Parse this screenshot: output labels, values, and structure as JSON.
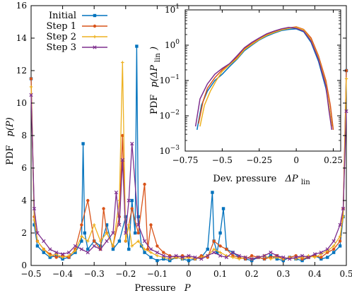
{
  "chart_data": [
    {
      "type": "line",
      "panel": "main",
      "xlabel": "Pressure",
      "xlabel_symbol": "P",
      "ylabel": "PDF",
      "ylabel_symbol": "p(P)",
      "xlim": [
        -0.5,
        0.5
      ],
      "ylim": [
        0,
        16
      ],
      "xticks": [
        "−0.5",
        "−0.4",
        "−0.3",
        "−0.2",
        "−0.1",
        "0",
        "0.1",
        "0.2",
        "0.3",
        "0.4",
        "0.5"
      ],
      "yticks": [
        "0",
        "2",
        "4",
        "6",
        "8",
        "10",
        "12",
        "14",
        "16"
      ],
      "legend_position": "top-left",
      "series": [
        {
          "name": "Initial",
          "color": "#0072bd",
          "marker": "square",
          "x": [
            -0.5,
            -0.49,
            -0.48,
            -0.46,
            -0.44,
            -0.42,
            -0.4,
            -0.38,
            -0.36,
            -0.34,
            -0.335,
            -0.33,
            -0.32,
            -0.3,
            -0.28,
            -0.26,
            -0.24,
            -0.22,
            -0.2,
            -0.19,
            -0.18,
            -0.17,
            -0.165,
            -0.16,
            -0.15,
            -0.14,
            -0.12,
            -0.1,
            -0.08,
            -0.06,
            -0.04,
            -0.02,
            0.0,
            0.02,
            0.04,
            0.06,
            0.075,
            0.08,
            0.09,
            0.1,
            0.11,
            0.12,
            0.14,
            0.16,
            0.18,
            0.2,
            0.22,
            0.24,
            0.26,
            0.28,
            0.3,
            0.32,
            0.34,
            0.36,
            0.38,
            0.4,
            0.42,
            0.44,
            0.46,
            0.48,
            0.49,
            0.5
          ],
          "y": [
            11.5,
            2.5,
            1.2,
            0.8,
            0.5,
            0.6,
            0.4,
            0.5,
            0.8,
            1.5,
            7.5,
            2.0,
            1.0,
            1.5,
            1.2,
            2.5,
            1.0,
            1.5,
            3.0,
            1.0,
            4.0,
            2.0,
            13.5,
            3.0,
            1.2,
            0.8,
            0.5,
            0.3,
            0.4,
            0.3,
            0.5,
            0.4,
            0.3,
            0.4,
            0.5,
            1.0,
            4.5,
            1.5,
            0.8,
            2.0,
            3.5,
            1.0,
            0.8,
            0.5,
            0.4,
            0.3,
            0.5,
            0.4,
            0.6,
            0.4,
            0.3,
            0.5,
            0.4,
            0.3,
            0.5,
            0.6,
            0.4,
            0.5,
            0.8,
            1.2,
            3.0,
            12.0
          ]
        },
        {
          "name": "Step 1",
          "color": "#d95319",
          "marker": "circle",
          "x": [
            -0.5,
            -0.49,
            -0.48,
            -0.46,
            -0.44,
            -0.42,
            -0.4,
            -0.38,
            -0.36,
            -0.34,
            -0.32,
            -0.3,
            -0.28,
            -0.27,
            -0.26,
            -0.24,
            -0.22,
            -0.21,
            -0.2,
            -0.18,
            -0.16,
            -0.14,
            -0.13,
            -0.12,
            -0.1,
            -0.08,
            -0.06,
            -0.04,
            -0.02,
            0.0,
            0.02,
            0.04,
            0.06,
            0.08,
            0.1,
            0.12,
            0.14,
            0.16,
            0.18,
            0.2,
            0.22,
            0.24,
            0.26,
            0.28,
            0.3,
            0.32,
            0.34,
            0.36,
            0.38,
            0.4,
            0.42,
            0.44,
            0.46,
            0.48,
            0.49,
            0.5
          ],
          "y": [
            11.5,
            3.0,
            1.5,
            1.0,
            0.7,
            0.5,
            0.6,
            0.5,
            1.0,
            2.5,
            4.0,
            1.5,
            1.0,
            3.5,
            2.0,
            1.2,
            3.0,
            8.0,
            1.5,
            3.5,
            2.0,
            5.0,
            1.0,
            2.5,
            1.2,
            0.8,
            0.6,
            0.5,
            0.6,
            0.5,
            0.4,
            0.6,
            0.5,
            1.5,
            1.2,
            1.0,
            0.6,
            0.5,
            0.4,
            0.6,
            0.5,
            0.4,
            0.5,
            0.6,
            0.4,
            0.5,
            0.6,
            0.4,
            0.5,
            0.6,
            0.5,
            0.8,
            1.0,
            1.5,
            3.5,
            12.0
          ]
        },
        {
          "name": "Step 2",
          "color": "#edb120",
          "marker": "plus",
          "x": [
            -0.5,
            -0.49,
            -0.48,
            -0.46,
            -0.44,
            -0.42,
            -0.4,
            -0.38,
            -0.36,
            -0.34,
            -0.32,
            -0.3,
            -0.28,
            -0.26,
            -0.24,
            -0.22,
            -0.21,
            -0.2,
            -0.19,
            -0.18,
            -0.16,
            -0.14,
            -0.12,
            -0.1,
            -0.08,
            -0.06,
            -0.04,
            -0.02,
            0.0,
            0.02,
            0.04,
            0.06,
            0.08,
            0.1,
            0.12,
            0.14,
            0.16,
            0.18,
            0.2,
            0.22,
            0.24,
            0.26,
            0.28,
            0.3,
            0.32,
            0.34,
            0.36,
            0.38,
            0.4,
            0.42,
            0.44,
            0.46,
            0.48,
            0.49,
            0.5
          ],
          "y": [
            11.0,
            2.8,
            1.5,
            1.0,
            0.6,
            0.7,
            0.5,
            0.6,
            0.9,
            1.8,
            1.5,
            2.5,
            1.5,
            2.0,
            1.2,
            4.0,
            12.5,
            1.5,
            2.5,
            1.2,
            1.5,
            1.0,
            0.8,
            0.6,
            0.5,
            0.4,
            0.5,
            0.4,
            0.5,
            0.4,
            0.5,
            0.6,
            1.0,
            0.8,
            0.6,
            0.5,
            0.4,
            0.5,
            0.4,
            0.5,
            0.6,
            0.4,
            0.5,
            0.4,
            0.5,
            0.4,
            0.5,
            0.6,
            0.5,
            0.7,
            0.9,
            1.2,
            1.8,
            3.0,
            11.5
          ]
        },
        {
          "name": "Step 3",
          "color": "#7e2f8e",
          "marker": "cross",
          "x": [
            -0.5,
            -0.49,
            -0.48,
            -0.46,
            -0.44,
            -0.42,
            -0.4,
            -0.38,
            -0.36,
            -0.34,
            -0.32,
            -0.3,
            -0.28,
            -0.26,
            -0.24,
            -0.23,
            -0.22,
            -0.21,
            -0.2,
            -0.19,
            -0.18,
            -0.16,
            -0.14,
            -0.12,
            -0.1,
            -0.08,
            -0.06,
            -0.04,
            -0.02,
            0.0,
            0.02,
            0.04,
            0.06,
            0.08,
            0.1,
            0.12,
            0.14,
            0.16,
            0.18,
            0.2,
            0.22,
            0.24,
            0.26,
            0.28,
            0.3,
            0.32,
            0.34,
            0.36,
            0.38,
            0.4,
            0.42,
            0.44,
            0.46,
            0.48,
            0.49,
            0.5
          ],
          "y": [
            10.5,
            3.5,
            2.0,
            1.5,
            1.0,
            0.8,
            0.7,
            0.8,
            1.2,
            1.0,
            0.8,
            1.2,
            1.0,
            1.5,
            2.0,
            4.5,
            2.5,
            6.5,
            2.0,
            4.0,
            7.5,
            2.5,
            1.5,
            1.0,
            0.8,
            0.6,
            0.5,
            0.6,
            0.5,
            0.6,
            0.5,
            0.4,
            0.6,
            0.8,
            0.6,
            0.5,
            0.8,
            0.6,
            0.5,
            0.4,
            0.5,
            0.6,
            0.8,
            0.6,
            0.5,
            0.4,
            0.5,
            0.6,
            0.5,
            0.7,
            0.8,
            1.0,
            1.5,
            2.5,
            3.5,
            9.5
          ]
        }
      ]
    },
    {
      "type": "line",
      "panel": "inset",
      "xlabel": "Dev. pressure",
      "xlabel_symbol": "ΔP",
      "xlabel_subscript": "lin",
      "ylabel": "PDF",
      "ylabel_symbol": "p(ΔP",
      "ylabel_subscript": "lin",
      "ylabel_close": ")",
      "xlim": [
        -0.75,
        0.3
      ],
      "ylim": [
        0.001,
        10
      ],
      "yscale": "log",
      "xticks": [
        "−0.75",
        "−0.5",
        "−0.25",
        "0",
        "0.25"
      ],
      "ytick_base": "10",
      "ytick_exponents": [
        "−3",
        "−2",
        "−1",
        "0",
        "1"
      ],
      "series": [
        {
          "name": "Initial",
          "color": "#0072bd",
          "x": [
            -0.67,
            -0.64,
            -0.6,
            -0.55,
            -0.5,
            -0.45,
            -0.4,
            -0.35,
            -0.3,
            -0.25,
            -0.2,
            -0.15,
            -0.1,
            -0.05,
            0.0,
            0.05,
            0.1,
            0.15,
            0.2,
            0.22,
            0.24
          ],
          "y": [
            0.004,
            0.02,
            0.05,
            0.1,
            0.15,
            0.25,
            0.4,
            0.7,
            1.0,
            1.4,
            1.8,
            2.2,
            2.6,
            2.8,
            2.9,
            2.4,
            1.2,
            0.35,
            0.06,
            0.02,
            0.005
          ]
        },
        {
          "name": "Step 1",
          "color": "#d95319",
          "x": [
            -0.66,
            -0.63,
            -0.6,
            -0.55,
            -0.5,
            -0.45,
            -0.4,
            -0.35,
            -0.3,
            -0.25,
            -0.2,
            -0.15,
            -0.1,
            -0.05,
            0.0,
            0.05,
            0.1,
            0.15,
            0.2,
            0.23,
            0.25
          ],
          "y": [
            0.006,
            0.025,
            0.06,
            0.12,
            0.2,
            0.3,
            0.45,
            0.8,
            1.1,
            1.5,
            2.0,
            2.4,
            2.8,
            3.1,
            3.3,
            2.8,
            1.6,
            0.5,
            0.1,
            0.02,
            0.004
          ]
        },
        {
          "name": "Step 2",
          "color": "#edb120",
          "x": [
            -0.65,
            -0.62,
            -0.58,
            -0.54,
            -0.5,
            -0.45,
            -0.4,
            -0.35,
            -0.3,
            -0.25,
            -0.2,
            -0.15,
            -0.1,
            -0.05,
            0.0,
            0.05,
            0.1,
            0.15,
            0.2,
            0.22,
            0.24
          ],
          "y": [
            0.005,
            0.02,
            0.05,
            0.1,
            0.18,
            0.28,
            0.42,
            0.75,
            1.05,
            1.45,
            1.9,
            2.3,
            2.7,
            3.0,
            3.2,
            2.7,
            1.4,
            0.45,
            0.08,
            0.02,
            0.005
          ]
        },
        {
          "name": "Step 3",
          "color": "#7e2f8e",
          "x": [
            -0.68,
            -0.65,
            -0.6,
            -0.55,
            -0.5,
            -0.45,
            -0.4,
            -0.35,
            -0.3,
            -0.25,
            -0.2,
            -0.15,
            -0.1,
            -0.05,
            0.0,
            0.05,
            0.1,
            0.15,
            0.2,
            0.22,
            0.24
          ],
          "y": [
            0.005,
            0.03,
            0.08,
            0.15,
            0.22,
            0.3,
            0.5,
            0.85,
            1.2,
            1.6,
            2.1,
            2.5,
            2.9,
            3.2,
            3.0,
            2.5,
            1.3,
            0.4,
            0.07,
            0.015,
            0.004
          ]
        }
      ]
    }
  ]
}
